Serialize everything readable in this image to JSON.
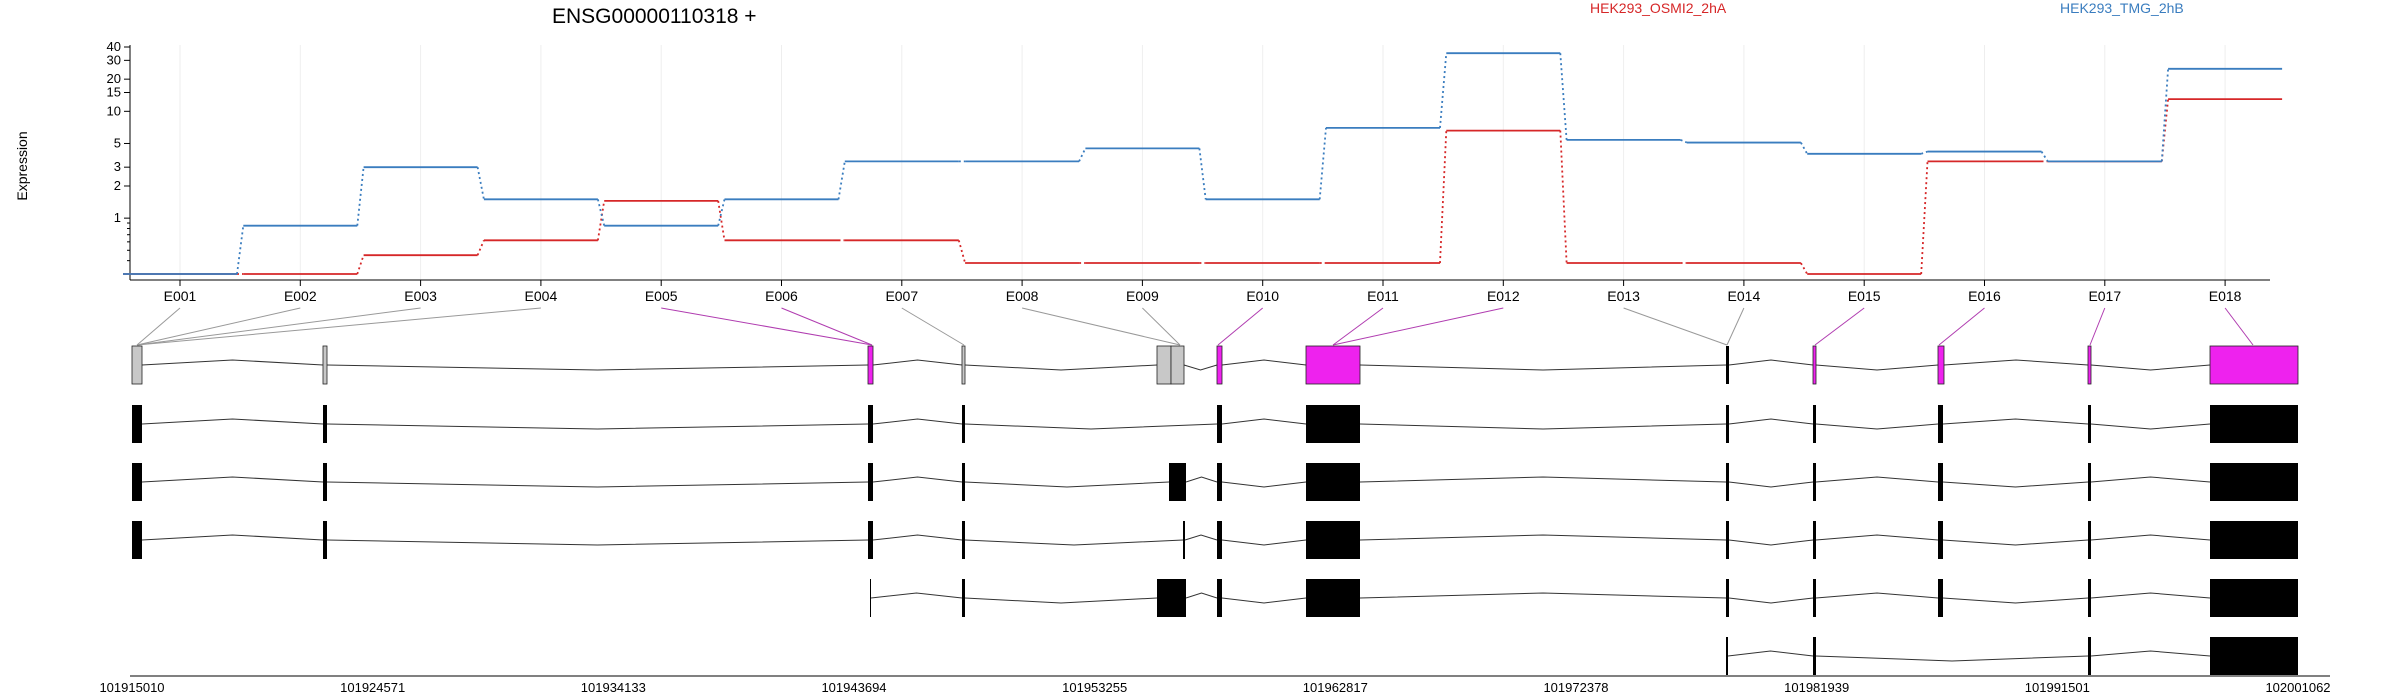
{
  "chart_data": {
    "type": "line",
    "title": "ENSG00000110318 +",
    "ylabel": "Expression",
    "y_scale": "log",
    "y_ticks": [
      1,
      2,
      3,
      5,
      10,
      15,
      20,
      30,
      40
    ],
    "categories": [
      "E001",
      "E002",
      "E003",
      "E004",
      "E005",
      "E006",
      "E007",
      "E008",
      "E009",
      "E010",
      "E011",
      "E012",
      "E013",
      "E014",
      "E015",
      "E016",
      "E017",
      "E018"
    ],
    "series": [
      {
        "name": "HEK293_OSMI2_2hA",
        "color": "#d62728",
        "values": [
          0.3,
          0.3,
          0.45,
          0.62,
          1.45,
          0.62,
          0.62,
          0.38,
          0.38,
          0.38,
          0.38,
          6.6,
          0.38,
          0.38,
          0.3,
          3.4,
          3.4,
          13.0
        ]
      },
      {
        "name": "HEK293_TMG_2hB",
        "color": "#3a7dbf",
        "values": [
          0.3,
          0.85,
          3.0,
          1.5,
          0.85,
          1.5,
          3.4,
          3.4,
          4.5,
          1.5,
          7.0,
          35.0,
          5.4,
          5.1,
          4.0,
          4.2,
          3.4,
          25.0
        ]
      }
    ],
    "grid": "vertical",
    "legend_position": "top"
  },
  "gene_model": {
    "coordinates": [
      "101915010",
      "101924571",
      "101934133",
      "101943694",
      "101953255",
      "101962817",
      "101972378",
      "101981939",
      "101991501",
      "102001062"
    ],
    "highlight_color": "#ee22ee",
    "exon_color": "#000000",
    "nonhighlight_exon_color": "#c8c8c8"
  }
}
